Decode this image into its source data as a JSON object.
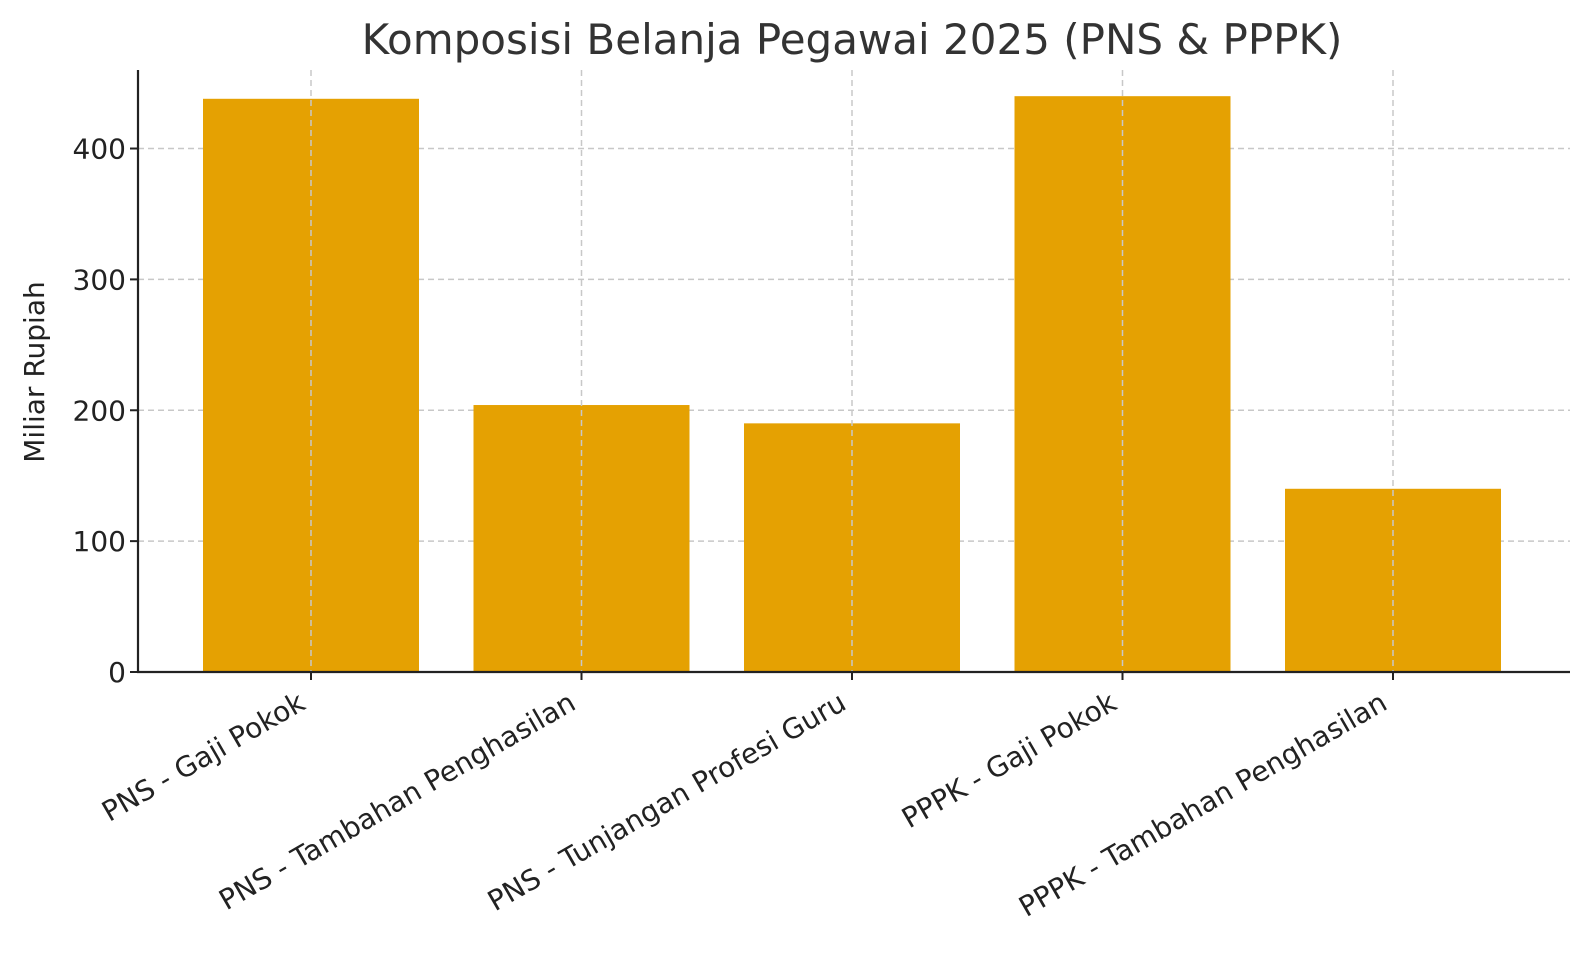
{
  "chart_data": {
    "type": "bar",
    "title": "Komposisi Belanja Pegawai 2025 (PNS & PPPK)",
    "xlabel": "",
    "ylabel": "Miliar Rupiah",
    "categories": [
      "PNS - Gaji Pokok",
      "PNS - Tambahan Penghasilan",
      "PNS - Tunjangan Profesi Guru",
      "PPPK - Gaji Pokok",
      "PPPK - Tambahan Penghasilan"
    ],
    "values": [
      438,
      204,
      190,
      440,
      140
    ],
    "ylim": [
      0,
      460
    ],
    "yticks": [
      0,
      100,
      200,
      300,
      400
    ],
    "grid": true,
    "bar_color": "#E5A102"
  }
}
